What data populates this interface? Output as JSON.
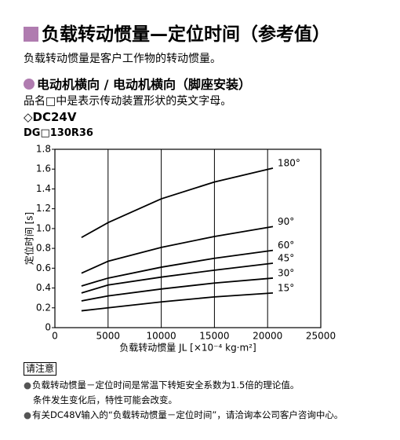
{
  "header": {
    "title": "负载转动惯量—定位时间（参考值）",
    "intro": "负载转动惯量是客户工作物的转动惯量。"
  },
  "section": {
    "heading": "电动机横向 / 电动机横向（脚座安装）",
    "text": "品名□中是表示传动装置形状的英文字母。",
    "voltage": "◇DC24V",
    "model": "DG□130R36"
  },
  "chart_data": {
    "type": "line",
    "xlabel": "负载转动惯量 JL [×10⁻⁴ kg·m²]",
    "ylabel": "定位时间 [s]",
    "x": [
      2500,
      5000,
      10000,
      15000,
      20500
    ],
    "series": [
      {
        "name": "180°",
        "color": "#000000",
        "values": [
          0.91,
          1.06,
          1.3,
          1.47,
          1.61
        ]
      },
      {
        "name": "90°",
        "color": "#000000",
        "values": [
          0.55,
          0.67,
          0.81,
          0.92,
          1.02
        ]
      },
      {
        "name": "60°",
        "color": "#000000",
        "values": [
          0.42,
          0.5,
          0.61,
          0.7,
          0.78
        ]
      },
      {
        "name": "45°",
        "color": "#000000",
        "values": [
          0.35,
          0.43,
          0.51,
          0.58,
          0.65
        ]
      },
      {
        "name": "30°",
        "color": "#000000",
        "values": [
          0.27,
          0.32,
          0.39,
          0.45,
          0.5
        ]
      },
      {
        "name": "15°",
        "color": "#000000",
        "values": [
          0.17,
          0.2,
          0.26,
          0.31,
          0.35
        ]
      }
    ],
    "xlim": [
      0,
      25000
    ],
    "xticks": [
      0,
      5000,
      10000,
      15000,
      20000,
      25000
    ],
    "ylim": [
      0,
      1.8
    ],
    "yticks": [
      0,
      0.2,
      0.4,
      0.6,
      0.8,
      {
        "value": 1,
        "label": "1.0"
      },
      1.2,
      1.4,
      1.6,
      1.8
    ],
    "grid": "x"
  },
  "notes": {
    "label": "请注意",
    "items": [
      "负载转动惯量－定位时间是常温下转矩安全系数为1.5倍的理论值。",
      "条件发生变化后，特性可能会改变。",
      "有关DC48V输入的“负载转动惯量－定位时间”，请洽询本公司客户咨询中心。"
    ]
  }
}
